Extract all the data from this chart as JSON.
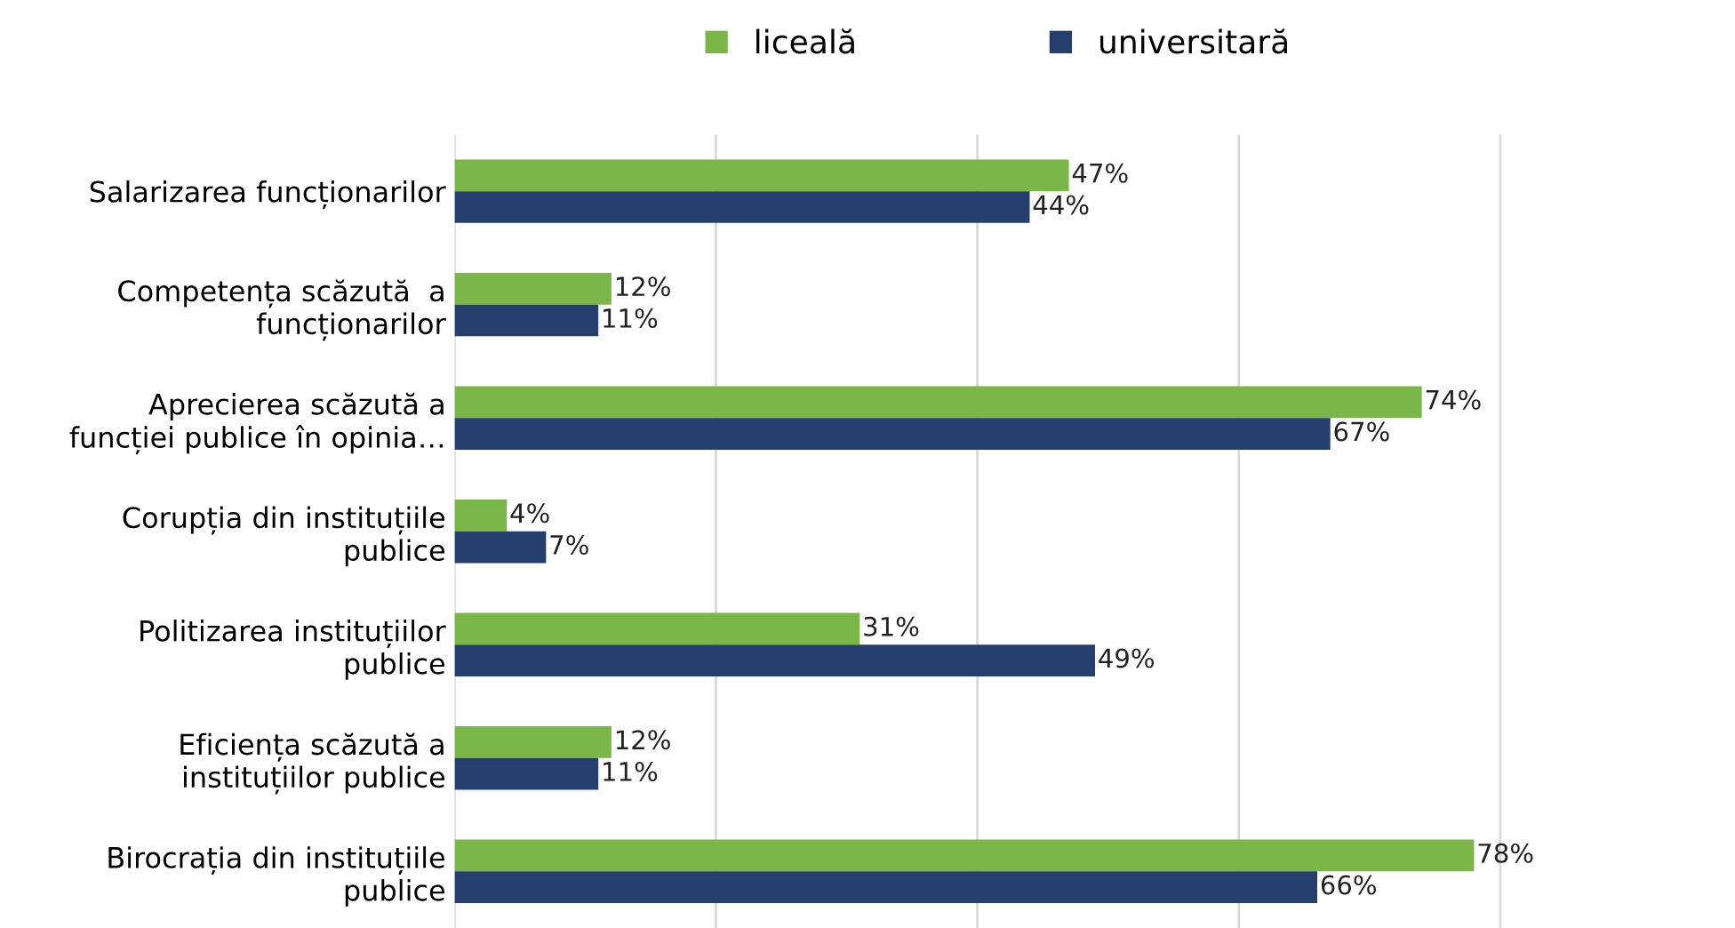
{
  "chart_data": {
    "type": "bar",
    "orientation": "horizontal",
    "categories": [
      "Salarizarea funcționarilor",
      "Competența scăzută  a\nfuncționarilor",
      "Aprecierea scăzută a\nfuncției publice în opinia…",
      "Corupția din instituțiile\npublice",
      "Politizarea instituțiilor\npublice",
      "Eficiența scăzută a\ninstituțiilor publice",
      "Birocrația din instituțiile\npublice"
    ],
    "series": [
      {
        "name": "liceală",
        "color": "#7ab648",
        "values": [
          47,
          12,
          74,
          4,
          31,
          12,
          78
        ],
        "value_labels": [
          "47%",
          "12%",
          "74%",
          "4%",
          "31%",
          "12%",
          "78%"
        ]
      },
      {
        "name": "universitară",
        "color": "#243f6b",
        "values": [
          44,
          11,
          67,
          7,
          49,
          11,
          66
        ],
        "value_labels": [
          "44%",
          "11%",
          "67%",
          "7%",
          "49%",
          "11%",
          "66%"
        ]
      }
    ],
    "xticks": [
      {
        "value": 0,
        "label": null
      },
      {
        "value": 20,
        "label": null
      },
      {
        "value": 40,
        "label": null
      },
      {
        "value": 60,
        "label": null
      },
      {
        "value": 80,
        "label": null
      }
    ],
    "tick_labels": "y",
    "grid": "x",
    "legend": "top"
  }
}
